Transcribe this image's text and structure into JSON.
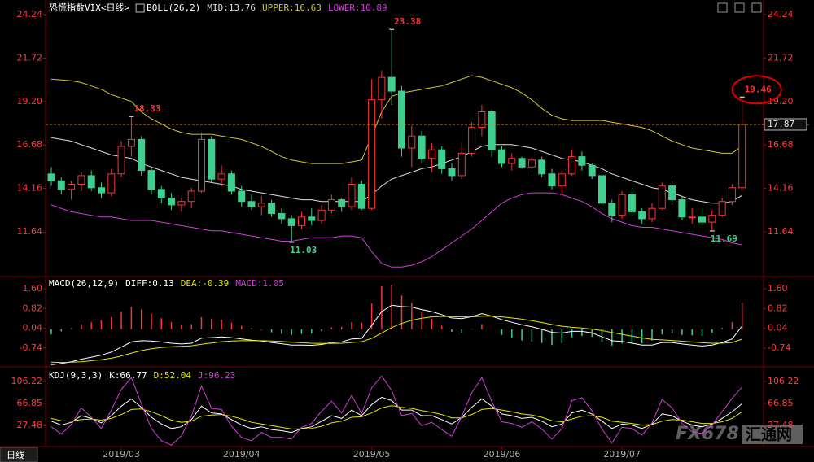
{
  "chart_data": [
    {
      "type": "candlestick",
      "title": "恐慌指数VIX<日线>",
      "indicator": "BOLL(26,2)",
      "up_color": "#ff3232",
      "down_color": "#3fcf8e",
      "categories": [
        null,
        null,
        null,
        null,
        null,
        null,
        null,
        "2019/03",
        null,
        null,
        null,
        null,
        null,
        null,
        null,
        null,
        null,
        null,
        null,
        "2019/04",
        null,
        null,
        null,
        null,
        null,
        null,
        null,
        null,
        null,
        null,
        null,
        null,
        "2019/05",
        null,
        null,
        null,
        null,
        null,
        null,
        null,
        null,
        null,
        null,
        null,
        null,
        "2019/06",
        null,
        null,
        null,
        null,
        null,
        null,
        null,
        null,
        null,
        null,
        null,
        "2019/07",
        null,
        null,
        null,
        null,
        null,
        null,
        null,
        null,
        null,
        null,
        null,
        null
      ],
      "open": [
        15.0,
        14.6,
        14.1,
        14.4,
        14.9,
        14.2,
        13.9,
        15.0,
        16.6,
        17.0,
        15.2,
        14.1,
        13.6,
        13.2,
        13.4,
        14.0,
        17.0,
        14.7,
        15.0,
        14.0,
        13.4,
        13.1,
        13.3,
        12.7,
        12.4,
        12.0,
        12.5,
        12.3,
        12.9,
        13.5,
        13.1,
        14.4,
        13.0,
        19.3,
        20.6,
        19.8,
        16.5,
        17.2,
        15.9,
        16.4,
        15.3,
        14.9,
        16.2,
        17.7,
        18.6,
        16.4,
        15.6,
        15.9,
        15.4,
        15.8,
        15.0,
        14.3,
        15.0,
        16.0,
        15.5,
        14.9,
        13.3,
        12.6,
        13.8,
        12.8,
        12.4,
        13.0,
        14.3,
        13.5,
        12.5,
        12.5,
        12.2,
        12.6,
        13.4,
        14.2
      ],
      "high": [
        15.4,
        14.8,
        14.6,
        15.1,
        15.2,
        14.5,
        15.3,
        16.9,
        18.33,
        17.2,
        15.4,
        14.3,
        13.9,
        13.6,
        14.2,
        17.4,
        17.2,
        15.5,
        15.2,
        14.3,
        13.8,
        13.7,
        13.5,
        13.0,
        12.6,
        12.8,
        13.0,
        13.2,
        13.8,
        13.6,
        14.8,
        14.6,
        20.5,
        21.0,
        23.38,
        20.1,
        17.8,
        17.5,
        16.8,
        16.6,
        15.6,
        16.8,
        18.0,
        19.0,
        18.7,
        16.6,
        16.2,
        16.0,
        16.0,
        16.0,
        15.3,
        15.2,
        16.4,
        16.3,
        15.6,
        15.0,
        13.5,
        14.0,
        14.2,
        13.0,
        13.3,
        14.5,
        14.6,
        13.7,
        13.0,
        13.0,
        12.9,
        13.6,
        14.4,
        19.46
      ],
      "low": [
        14.3,
        13.8,
        13.5,
        14.0,
        14.0,
        13.6,
        13.7,
        14.8,
        16.0,
        14.9,
        13.8,
        13.3,
        12.9,
        12.8,
        13.0,
        13.9,
        14.5,
        14.3,
        13.8,
        13.1,
        12.9,
        12.6,
        12.5,
        12.1,
        11.03,
        11.8,
        12.0,
        12.1,
        12.7,
        12.8,
        12.9,
        12.9,
        12.9,
        18.2,
        19.0,
        16.0,
        15.4,
        15.6,
        15.1,
        15.0,
        14.6,
        14.7,
        16.0,
        17.2,
        16.0,
        15.4,
        15.2,
        15.3,
        15.1,
        14.8,
        14.1,
        13.8,
        14.9,
        15.2,
        14.7,
        13.0,
        12.2,
        12.4,
        12.6,
        12.1,
        12.2,
        12.9,
        13.2,
        12.3,
        12.1,
        12.0,
        11.69,
        12.5,
        13.2,
        14.0
      ],
      "close": [
        14.6,
        14.1,
        14.4,
        14.9,
        14.2,
        13.9,
        15.0,
        16.6,
        17.0,
        15.2,
        14.1,
        13.6,
        13.2,
        13.4,
        14.0,
        17.0,
        14.7,
        15.0,
        14.0,
        13.4,
        13.1,
        13.3,
        12.7,
        12.4,
        12.0,
        12.5,
        12.3,
        12.9,
        13.5,
        13.1,
        14.4,
        13.0,
        19.3,
        20.6,
        19.8,
        16.5,
        17.2,
        15.9,
        16.4,
        15.3,
        14.9,
        16.2,
        17.7,
        18.6,
        16.4,
        15.6,
        15.9,
        15.4,
        15.8,
        15.0,
        14.3,
        15.0,
        16.0,
        15.5,
        14.9,
        13.3,
        12.6,
        13.8,
        12.8,
        12.4,
        13.0,
        14.3,
        13.5,
        12.5,
        12.5,
        12.2,
        12.6,
        13.4,
        14.2,
        17.87
      ],
      "series": [
        {
          "name": "MID:13.76",
          "color": "#e0e0e0",
          "values": [
            17.1,
            17.0,
            16.9,
            16.7,
            16.5,
            16.3,
            16.1,
            16.0,
            15.9,
            15.6,
            15.4,
            15.2,
            15.0,
            14.8,
            14.7,
            14.6,
            14.5,
            14.4,
            14.3,
            14.1,
            14.0,
            13.9,
            13.8,
            13.7,
            13.6,
            13.5,
            13.5,
            13.4,
            13.4,
            13.4,
            13.4,
            13.4,
            13.8,
            14.3,
            14.7,
            14.9,
            15.1,
            15.3,
            15.4,
            15.6,
            15.8,
            16.0,
            16.3,
            16.6,
            16.7,
            16.7,
            16.7,
            16.6,
            16.5,
            16.3,
            16.1,
            15.9,
            15.8,
            15.7,
            15.5,
            15.3,
            15.0,
            14.8,
            14.6,
            14.4,
            14.2,
            14.1,
            13.9,
            13.7,
            13.5,
            13.4,
            13.3,
            13.3,
            13.4,
            13.76
          ]
        },
        {
          "name": "UPPER:16.63",
          "color": "#d2c832",
          "values": [
            20.5,
            20.45,
            20.4,
            20.3,
            20.1,
            19.9,
            19.6,
            19.4,
            19.2,
            18.6,
            18.2,
            17.9,
            17.6,
            17.4,
            17.3,
            17.3,
            17.3,
            17.2,
            17.1,
            17.0,
            16.8,
            16.6,
            16.3,
            16.0,
            15.8,
            15.7,
            15.6,
            15.6,
            15.6,
            15.6,
            15.7,
            15.8,
            17.2,
            18.6,
            19.5,
            19.7,
            19.8,
            19.9,
            20.0,
            20.1,
            20.3,
            20.5,
            20.7,
            20.6,
            20.4,
            20.2,
            20.0,
            19.7,
            19.3,
            18.8,
            18.4,
            18.2,
            18.1,
            18.1,
            18.1,
            18.1,
            18.0,
            17.9,
            17.8,
            17.7,
            17.5,
            17.2,
            16.9,
            16.7,
            16.5,
            16.4,
            16.3,
            16.2,
            16.2,
            16.63
          ]
        },
        {
          "name": "LOWER:10.89",
          "color": "#d040d8",
          "values": [
            13.2,
            13.0,
            12.8,
            12.7,
            12.6,
            12.5,
            12.5,
            12.4,
            12.3,
            12.3,
            12.3,
            12.2,
            12.1,
            12.0,
            11.9,
            11.8,
            11.7,
            11.7,
            11.6,
            11.5,
            11.4,
            11.3,
            11.2,
            11.1,
            11.1,
            11.2,
            11.3,
            11.3,
            11.3,
            11.4,
            11.4,
            11.3,
            10.5,
            9.8,
            9.6,
            9.6,
            9.7,
            9.9,
            10.2,
            10.6,
            11.0,
            11.4,
            11.8,
            12.3,
            12.8,
            13.3,
            13.6,
            13.8,
            13.9,
            13.9,
            13.9,
            13.8,
            13.6,
            13.4,
            13.1,
            12.7,
            12.4,
            12.2,
            12.0,
            11.9,
            11.9,
            11.8,
            11.7,
            11.6,
            11.5,
            11.4,
            11.3,
            11.2,
            11.0,
            10.89
          ]
        }
      ],
      "ylim": [
        9.14,
        24.71
      ],
      "yticks": [
        24.24,
        21.72,
        {
          "value": 19.2,
          "label": "19.20"
        },
        16.68,
        14.16,
        11.64
      ]
    },
    {
      "type": "macd",
      "title": "MACD(26,12,9)",
      "up_color": "#ff3232",
      "down_color": "#3fcf8e",
      "series": [
        {
          "name": "DIFF:0.13",
          "color": "#ffffff",
          "values": [
            -1.4,
            -1.35,
            -1.28,
            -1.18,
            -1.1,
            -1.02,
            -0.9,
            -0.7,
            -0.5,
            -0.45,
            -0.46,
            -0.5,
            -0.55,
            -0.58,
            -0.55,
            -0.35,
            -0.33,
            -0.3,
            -0.33,
            -0.38,
            -0.43,
            -0.46,
            -0.52,
            -0.57,
            -0.62,
            -0.62,
            -0.63,
            -0.6,
            -0.52,
            -0.5,
            -0.38,
            -0.36,
            0.15,
            0.7,
            0.95,
            0.9,
            0.88,
            0.78,
            0.7,
            0.58,
            0.45,
            0.42,
            0.5,
            0.62,
            0.52,
            0.38,
            0.28,
            0.18,
            0.1,
            0.0,
            -0.12,
            -0.15,
            -0.08,
            -0.08,
            -0.14,
            -0.3,
            -0.45,
            -0.48,
            -0.55,
            -0.62,
            -0.62,
            -0.52,
            -0.52,
            -0.58,
            -0.62,
            -0.66,
            -0.62,
            -0.52,
            -0.38,
            0.13
          ]
        },
        {
          "name": "DEA:-0.39",
          "color": "#e6e600",
          "values": [
            -1.3,
            -1.31,
            -1.3,
            -1.28,
            -1.24,
            -1.2,
            -1.14,
            -1.05,
            -0.94,
            -0.84,
            -0.77,
            -0.72,
            -0.69,
            -0.67,
            -0.65,
            -0.59,
            -0.54,
            -0.49,
            -0.46,
            -0.45,
            -0.45,
            -0.45,
            -0.46,
            -0.48,
            -0.51,
            -0.53,
            -0.55,
            -0.56,
            -0.56,
            -0.55,
            -0.52,
            -0.49,
            -0.36,
            -0.15,
            0.07,
            0.23,
            0.36,
            0.44,
            0.49,
            0.51,
            0.5,
            0.49,
            0.49,
            0.52,
            0.52,
            0.49,
            0.45,
            0.4,
            0.34,
            0.27,
            0.19,
            0.12,
            0.08,
            0.05,
            0.01,
            -0.05,
            -0.13,
            -0.2,
            -0.27,
            -0.34,
            -0.4,
            -0.42,
            -0.44,
            -0.47,
            -0.5,
            -0.53,
            -0.55,
            -0.55,
            -0.52,
            -0.39
          ]
        },
        {
          "name": "MACD:1.05",
          "color": "#d040d8",
          "style": "histogram",
          "values": [
            -0.2,
            -0.08,
            0.04,
            0.2,
            0.28,
            0.36,
            0.48,
            0.7,
            0.88,
            0.78,
            0.62,
            0.44,
            0.28,
            0.18,
            0.2,
            0.48,
            0.42,
            0.38,
            0.26,
            0.14,
            0.04,
            -0.02,
            -0.12,
            -0.18,
            -0.22,
            -0.18,
            -0.16,
            -0.08,
            0.08,
            0.1,
            0.28,
            0.26,
            1.02,
            1.7,
            1.76,
            1.34,
            1.04,
            0.68,
            0.42,
            0.14,
            -0.1,
            -0.14,
            0.02,
            0.2,
            0.0,
            -0.22,
            -0.34,
            -0.44,
            -0.48,
            -0.54,
            -0.62,
            -0.54,
            -0.32,
            -0.26,
            -0.3,
            -0.5,
            -0.64,
            -0.56,
            -0.56,
            -0.56,
            -0.44,
            -0.2,
            -0.16,
            -0.22,
            -0.24,
            -0.26,
            -0.14,
            0.06,
            0.28,
            1.05
          ]
        }
      ],
      "ylim": [
        -1.45,
        2.02
      ],
      "yticks": [
        {
          "value": 1.6,
          "label": "1.60"
        },
        0.82,
        0.04,
        -0.74
      ]
    },
    {
      "type": "line",
      "title": "KDJ(9,3,3)",
      "series": [
        {
          "name": "K:66.77",
          "color": "#ffffff",
          "values": [
            35,
            28,
            33,
            45,
            40,
            32,
            45,
            62,
            75,
            60,
            42,
            30,
            22,
            25,
            38,
            62,
            50,
            48,
            38,
            28,
            22,
            25,
            20,
            18,
            15,
            22,
            25,
            35,
            45,
            40,
            55,
            45,
            65,
            78,
            72,
            55,
            55,
            45,
            45,
            38,
            30,
            42,
            60,
            75,
            62,
            48,
            45,
            40,
            42,
            35,
            25,
            30,
            50,
            55,
            48,
            35,
            22,
            30,
            28,
            22,
            30,
            48,
            45,
            35,
            28,
            25,
            30,
            40,
            52,
            66.77
          ]
        },
        {
          "name": "D:52.04",
          "color": "#e6e600",
          "values": [
            40,
            36,
            35,
            38,
            39,
            37,
            40,
            47,
            56,
            57,
            52,
            45,
            37,
            33,
            35,
            44,
            46,
            47,
            44,
            39,
            33,
            30,
            27,
            24,
            21,
            21,
            22,
            26,
            32,
            35,
            42,
            43,
            50,
            59,
            63,
            60,
            58,
            54,
            51,
            47,
            41,
            41,
            47,
            56,
            58,
            55,
            52,
            48,
            46,
            42,
            36,
            34,
            39,
            44,
            45,
            42,
            35,
            33,
            31,
            28,
            29,
            35,
            38,
            37,
            34,
            31,
            31,
            34,
            40,
            52.04
          ]
        },
        {
          "name": "J:96.23",
          "color": "#d040d8",
          "values": [
            25,
            12,
            29,
            59,
            42,
            22,
            55,
            92,
            113,
            66,
            22,
            0,
            -8,
            9,
            44,
            98,
            58,
            56,
            26,
            6,
            0,
            15,
            6,
            6,
            3,
            24,
            31,
            53,
            71,
            50,
            81,
            49,
            95,
            116,
            90,
            45,
            49,
            27,
            33,
            20,
            8,
            44,
            86,
            113,
            70,
            34,
            31,
            24,
            34,
            21,
            3,
            22,
            72,
            77,
            54,
            21,
            -4,
            24,
            22,
            10,
            32,
            74,
            59,
            31,
            16,
            13,
            28,
            52,
            76,
            96.23
          ]
        }
      ],
      "ylim": [
        -8.97,
        131.0
      ],
      "yticks": [
        106.22,
        66.85,
        27.48
      ]
    }
  ],
  "tab": "日线",
  "watermark": [
    "FX678",
    "汇通网"
  ]
}
